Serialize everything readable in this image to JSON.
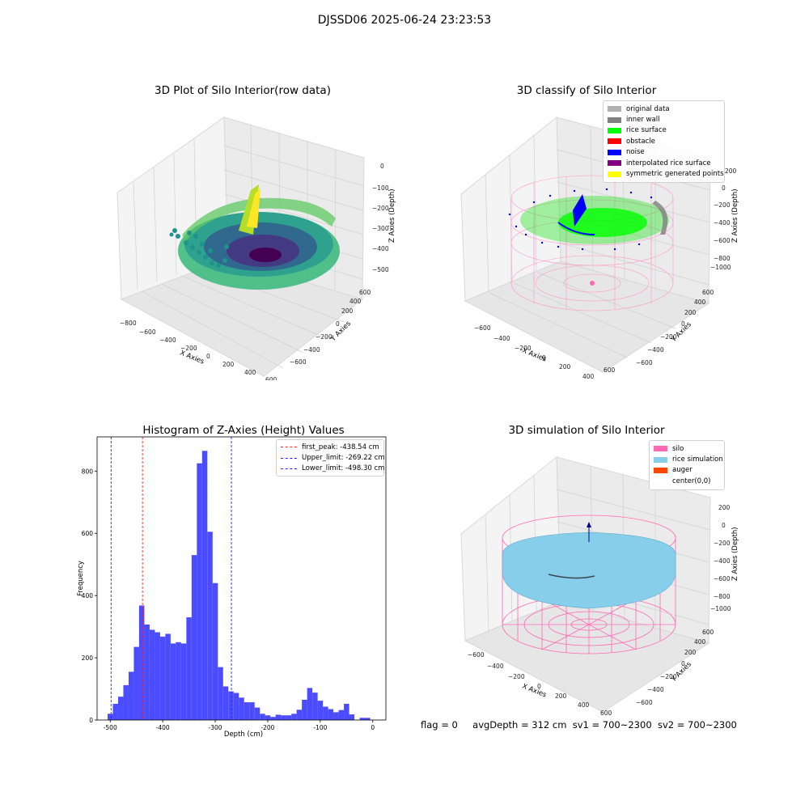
{
  "figure_title": "DJSSD06 2025-06-24 23:23:53",
  "status": {
    "flag": "flag = 0",
    "avg_depth": "avgDepth = 312 cm",
    "sv1": "sv1 = 700~2300",
    "sv2": "sv2 = 700~2300"
  },
  "colors": {
    "hist_bar": "#4b4bff",
    "first_peak": "#ff2020",
    "limits": "#2020ff",
    "silo": "#ff69b4",
    "rice_sim": "#87ceeb",
    "auger": "#ff4500",
    "rice_surface": "#00ff00",
    "noise": "#0000ff",
    "inner_wall": "#808080"
  },
  "chart_data": [
    {
      "type": "scatter",
      "projection": "3d",
      "title": "3D Plot of Silo Interior(row data)",
      "xlabel": "X Axies",
      "ylabel": "Y Axies",
      "zlabel": "Z Axies (Depth)",
      "x_ticks": [
        "−800",
        "−600",
        "−400",
        "−200",
        "0",
        "200",
        "400",
        "600"
      ],
      "y_ticks": [
        "−600",
        "−400",
        "−200",
        "0",
        "200",
        "400",
        "600"
      ],
      "z_ticks": [
        "0",
        "−100",
        "−200",
        "−300",
        "−400",
        "−500"
      ],
      "colormap": "viridis",
      "grid": true
    },
    {
      "type": "scatter",
      "projection": "3d",
      "title": "3D classify of Silo Interior",
      "xlabel": "X Axies",
      "ylabel": "Y Axies",
      "zlabel": "Z Axies (Depth)",
      "x_ticks": [
        "−600",
        "−400",
        "−200",
        "0",
        "200",
        "400",
        "600"
      ],
      "y_ticks": [
        "−600",
        "−400",
        "−200",
        "0",
        "200",
        "400",
        "600"
      ],
      "z_ticks": [
        "200",
        "0",
        "−200",
        "−400",
        "−600",
        "−800",
        "−1000"
      ],
      "legend": [
        {
          "label": "original data",
          "color": "#b0b0b0"
        },
        {
          "label": "inner wall",
          "color": "#808080"
        },
        {
          "label": "rice surface",
          "color": "#00ff00"
        },
        {
          "label": "obstacle",
          "color": "#ff0000"
        },
        {
          "label": "noise",
          "color": "#0000ff"
        },
        {
          "label": "interpolated rice surface",
          "color": "#800080"
        },
        {
          "label": "symmetric generated points",
          "color": "#ffff00"
        }
      ],
      "legend_position": "top-right",
      "grid": true
    },
    {
      "type": "bar",
      "title": "Histogram of Z-Axies (Height) Values",
      "xlabel": "Depth (cm)",
      "ylabel": "Frequency",
      "xlim": [
        -525,
        25
      ],
      "ylim": [
        0,
        910
      ],
      "bin_width": 10,
      "bin_start": -505,
      "values": [
        20,
        52,
        75,
        112,
        155,
        235,
        368,
        307,
        290,
        282,
        268,
        277,
        246,
        250,
        246,
        330,
        530,
        825,
        865,
        605,
        440,
        170,
        108,
        92,
        87,
        72,
        57,
        57,
        40,
        20,
        15,
        10,
        17,
        15,
        15,
        20,
        33,
        65,
        103,
        88,
        62,
        43,
        35,
        25,
        32,
        52,
        18,
        0,
        7,
        7,
        0
      ],
      "x_ticks": [
        -500,
        -400,
        -300,
        -200,
        -100,
        0
      ],
      "y_ticks": [
        0,
        200,
        400,
        600,
        800
      ],
      "vlines": [
        {
          "label": "first_peak: -438.54 cm",
          "x": -438.54,
          "color": "#ff2020"
        },
        {
          "label": "Upper_limit: -269.22 cm",
          "x": -269.22,
          "color": "#2020ff"
        },
        {
          "label": "Lower_limit: -498.30 cm",
          "x": -498.3,
          "color": "#2020ff"
        }
      ],
      "legend_position": "top-right"
    },
    {
      "type": "surface",
      "projection": "3d",
      "title": "3D simulation of Silo Interior",
      "xlabel": "X Axies",
      "ylabel": "Y Axies",
      "zlabel": "Z Axies (Depth)",
      "x_ticks": [
        "−600",
        "−400",
        "−200",
        "0",
        "200",
        "400",
        "600"
      ],
      "y_ticks": [
        "−600",
        "−400",
        "−200",
        "0",
        "200",
        "400",
        "600"
      ],
      "z_ticks": [
        "200",
        "0",
        "−200",
        "−400",
        "−600",
        "−800",
        "−1000"
      ],
      "legend": [
        {
          "label": "silo",
          "color": "#ff69b4"
        },
        {
          "label": "rice simulation",
          "color": "#87ceeb"
        },
        {
          "label": "auger",
          "color": "#ff4500"
        },
        {
          "label": "center(0,0)",
          "color": "#ffffff"
        }
      ],
      "legend_position": "top-right",
      "grid": true
    }
  ]
}
